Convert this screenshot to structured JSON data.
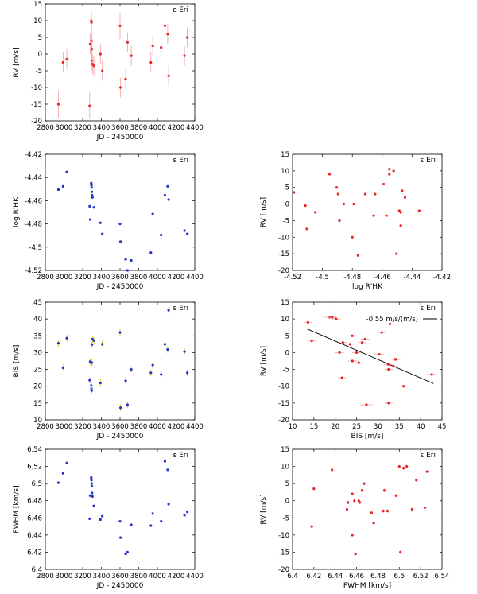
{
  "star_label": "ε Eri",
  "colors": {
    "red": "#e8242a",
    "blue": "#2233cc",
    "errbar": "#f0a0a0",
    "errbar_blue": "#c8d000",
    "fit": "#000000"
  },
  "chart_data": [
    {
      "id": "p1",
      "type": "scatter",
      "color": "red",
      "xerr": false,
      "xlabel": "JD - 2450000",
      "ylabel": "RV [m/s]",
      "xlim": [
        2800,
        4400
      ],
      "ylim": [
        -20,
        15
      ],
      "xticks": [
        "2800",
        "3000",
        "3200",
        "3400",
        "3600",
        "3800",
        "4000",
        "4200",
        "4400"
      ],
      "yticks": [
        "-20",
        "-15",
        "-10",
        "-5",
        "0",
        "5",
        "10",
        "15"
      ],
      "points": [
        [
          2940,
          -15,
          4
        ],
        [
          2990,
          -2.5,
          3
        ],
        [
          3030,
          -1.5,
          3
        ],
        [
          3275,
          -15.5,
          4
        ],
        [
          3280,
          3,
          3
        ],
        [
          3292,
          10,
          3
        ],
        [
          3294,
          9.5,
          3
        ],
        [
          3296,
          4,
          3
        ],
        [
          3298,
          1.5,
          3
        ],
        [
          3300,
          -2,
          3
        ],
        [
          3305,
          -3,
          3
        ],
        [
          3320,
          -3.5,
          3
        ],
        [
          3390,
          0,
          3
        ],
        [
          3410,
          -5,
          3
        ],
        [
          3600,
          8.5,
          4
        ],
        [
          3605,
          -10,
          3
        ],
        [
          3660,
          -7.5,
          3
        ],
        [
          3680,
          3.5,
          3
        ],
        [
          3720,
          -0.5,
          3
        ],
        [
          3930,
          -2.5,
          3
        ],
        [
          3950,
          2.5,
          3
        ],
        [
          4040,
          2,
          3
        ],
        [
          4080,
          8.5,
          3
        ],
        [
          4110,
          6,
          3
        ],
        [
          4120,
          -6.5,
          3
        ],
        [
          4290,
          -0.5,
          3
        ],
        [
          4320,
          5,
          3
        ]
      ]
    },
    {
      "id": "p2",
      "type": "scatter",
      "color": "blue",
      "xerr": false,
      "xlabel": "JD - 2450000",
      "ylabel": "log R'HK",
      "xlim": [
        2800,
        4400
      ],
      "ylim": [
        -4.525,
        -4.42
      ],
      "xticks": [
        "2800",
        "3000",
        "3200",
        "3400",
        "3600",
        "3800",
        "4000",
        "4200",
        "4400"
      ],
      "yticks": [
        "-4.52",
        "-4.5",
        "-4.48",
        "-4.46",
        "-4.44",
        "-4.42"
      ],
      "points": [
        [
          2940,
          -4.452,
          0.001
        ],
        [
          2990,
          -4.449,
          0.001
        ],
        [
          3030,
          -4.436,
          0.001
        ],
        [
          3275,
          -4.467,
          0.001
        ],
        [
          3280,
          -4.479,
          0.001
        ],
        [
          3292,
          -4.446,
          0.001
        ],
        [
          3294,
          -4.448,
          0.001
        ],
        [
          3296,
          -4.45,
          0.001
        ],
        [
          3298,
          -4.454,
          0.001
        ],
        [
          3300,
          -4.457,
          0.001
        ],
        [
          3305,
          -4.459,
          0.001
        ],
        [
          3320,
          -4.468,
          0.001
        ],
        [
          3390,
          -4.482,
          0.001
        ],
        [
          3410,
          -4.492,
          0.001
        ],
        [
          3600,
          -4.483,
          0.001
        ],
        [
          3605,
          -4.499,
          0.001
        ],
        [
          3660,
          -4.515,
          0.001
        ],
        [
          3680,
          -4.525,
          0.001
        ],
        [
          3720,
          -4.516,
          0.001
        ],
        [
          3930,
          -4.509,
          0.001
        ],
        [
          3950,
          -4.474,
          0.001
        ],
        [
          4040,
          -4.493,
          0.001
        ],
        [
          4080,
          -4.457,
          0.001
        ],
        [
          4110,
          -4.449,
          0.001
        ],
        [
          4120,
          -4.461,
          0.001
        ],
        [
          4290,
          -4.489,
          0.001
        ],
        [
          4320,
          -4.492,
          0.001
        ]
      ]
    },
    {
      "id": "p3",
      "type": "scatter",
      "color": "red",
      "xerr": false,
      "xlabel": "log R'HK",
      "ylabel": "RV [m/s]",
      "xlim": [
        -4.525,
        -4.42
      ],
      "ylim": [
        -20,
        15
      ],
      "xticks": [
        "-4.52",
        "-4.5",
        "-4.48",
        "-4.46",
        "-4.44",
        "-4.42"
      ],
      "yticks": [
        "-20",
        "-15",
        "-10",
        "-5",
        "0",
        "5",
        "10",
        "15"
      ],
      "points": [
        [
          -4.524,
          3.5,
          0.2
        ],
        [
          -4.516,
          -0.5,
          0.2
        ],
        [
          -4.515,
          -7.5,
          0.2
        ],
        [
          -4.509,
          -2.5,
          0.2
        ],
        [
          -4.499,
          9,
          0.2
        ],
        [
          -4.494,
          5,
          0.2
        ],
        [
          -4.493,
          3,
          0.2
        ],
        [
          -4.492,
          -5,
          0.2
        ],
        [
          -4.489,
          0,
          0.2
        ],
        [
          -4.483,
          -10,
          0.2
        ],
        [
          -4.482,
          0,
          0.2
        ],
        [
          -4.479,
          -15.5,
          0.2
        ],
        [
          -4.474,
          3,
          0.2
        ],
        [
          -4.468,
          -3.5,
          0.2
        ],
        [
          -4.467,
          3,
          0.2
        ],
        [
          -4.461,
          6,
          0.2
        ],
        [
          -4.459,
          -3.5,
          0.2
        ],
        [
          -4.457,
          10.5,
          0.2
        ],
        [
          -4.457,
          9,
          0.2
        ],
        [
          -4.454,
          10,
          0.2
        ],
        [
          -4.452,
          -15,
          0.2
        ],
        [
          -4.45,
          -2,
          0.2
        ],
        [
          -4.449,
          -2.5,
          0.2
        ],
        [
          -4.448,
          4,
          0.2
        ],
        [
          -4.446,
          2,
          0.2
        ],
        [
          -4.449,
          -6.5,
          0.2
        ],
        [
          -4.436,
          -2,
          0.2
        ]
      ]
    },
    {
      "id": "p4",
      "type": "scatter",
      "color": "blue",
      "xerr": false,
      "xlabel": "JD - 2450000",
      "ylabel": "BIS [m/s]",
      "xlim": [
        2800,
        4400
      ],
      "ylim": [
        10,
        45
      ],
      "xticks": [
        "2800",
        "3000",
        "3200",
        "3400",
        "3600",
        "3800",
        "4000",
        "4200",
        "4400"
      ],
      "yticks": [
        "10",
        "15",
        "20",
        "25",
        "30",
        "35",
        "40",
        "45"
      ],
      "points": [
        [
          2940,
          32.8,
          1
        ],
        [
          2990,
          25.5,
          1
        ],
        [
          3030,
          34.3,
          1
        ],
        [
          3275,
          21.8,
          1
        ],
        [
          3280,
          27.3,
          1
        ],
        [
          3292,
          20.2,
          1
        ],
        [
          3294,
          19.3,
          1
        ],
        [
          3296,
          18.7,
          1
        ],
        [
          3298,
          27.0,
          1
        ],
        [
          3300,
          32.4,
          1
        ],
        [
          3305,
          34.0,
          1
        ],
        [
          3320,
          33.6,
          1
        ],
        [
          3390,
          21.0,
          1
        ],
        [
          3410,
          32.5,
          1
        ],
        [
          3600,
          36.0,
          1
        ],
        [
          3605,
          13.6,
          1
        ],
        [
          3660,
          21.6,
          1
        ],
        [
          3680,
          14.5,
          1
        ],
        [
          3720,
          25.0,
          1
        ],
        [
          3930,
          24.0,
          1
        ],
        [
          3950,
          26.3,
          1
        ],
        [
          4040,
          23.5,
          1
        ],
        [
          4080,
          32.5,
          1
        ],
        [
          4110,
          30.9,
          1
        ],
        [
          4120,
          42.6,
          1
        ],
        [
          4290,
          30.3,
          1
        ],
        [
          4320,
          24.0,
          1
        ]
      ]
    },
    {
      "id": "p5",
      "type": "scatter",
      "color": "red",
      "xerr": true,
      "xlabel": "BIS [m/s]",
      "ylabel": "RV [m/s]",
      "xlim": [
        10,
        45
      ],
      "ylim": [
        -20,
        15
      ],
      "xticks": [
        "10",
        "15",
        "20",
        "25",
        "30",
        "35",
        "40",
        "45"
      ],
      "yticks": [
        "-20",
        "-15",
        "-10",
        "-5",
        "0",
        "5",
        "10",
        "15"
      ],
      "legend_text": "-0.55 m/s/(m/s)",
      "fit_line": {
        "x": [
          13.5,
          43
        ],
        "y": [
          7,
          -9.2
        ]
      },
      "points": [
        [
          13.6,
          9,
          1
        ],
        [
          14.5,
          3.5,
          1
        ],
        [
          18.7,
          10.5,
          1.5
        ],
        [
          19.3,
          10.5,
          1
        ],
        [
          20.2,
          10,
          1
        ],
        [
          21.0,
          0,
          1
        ],
        [
          21.6,
          -7.5,
          1
        ],
        [
          21.8,
          3,
          1
        ],
        [
          23.5,
          2.5,
          1
        ],
        [
          24.0,
          5,
          1
        ],
        [
          24.0,
          -2.5,
          1
        ],
        [
          25.0,
          0,
          1
        ],
        [
          25.5,
          -3,
          1
        ],
        [
          26.3,
          3,
          1
        ],
        [
          27.0,
          4,
          1
        ],
        [
          27.3,
          -15.5,
          1.5
        ],
        [
          30.3,
          -0.5,
          1
        ],
        [
          30.9,
          6,
          1
        ],
        [
          32.4,
          -3.5,
          1
        ],
        [
          32.5,
          -5,
          1
        ],
        [
          32.5,
          -15,
          1
        ],
        [
          32.8,
          8.5,
          1
        ],
        [
          33.6,
          -4,
          1
        ],
        [
          34.0,
          -2,
          1
        ],
        [
          34.3,
          -2,
          1
        ],
        [
          36.0,
          -10,
          1
        ],
        [
          42.6,
          -6.5,
          1
        ]
      ]
    },
    {
      "id": "p6",
      "type": "scatter",
      "color": "blue",
      "xerr": false,
      "xlabel": "JD - 2450000",
      "ylabel": "FWHM [km/s]",
      "xlim": [
        2800,
        4400
      ],
      "ylim": [
        6.4,
        6.54
      ],
      "xticks": [
        "2800",
        "3000",
        "3200",
        "3400",
        "3600",
        "3800",
        "4000",
        "4200",
        "4400"
      ],
      "yticks": [
        "6.4",
        "6.42",
        "6.44",
        "6.46",
        "6.48",
        "6.5",
        "6.52",
        "6.54"
      ],
      "points": [
        [
          2940,
          6.501,
          0.001
        ],
        [
          2990,
          6.512,
          0.001
        ],
        [
          3030,
          6.524,
          0.001
        ],
        [
          3275,
          6.459,
          0.001
        ],
        [
          3280,
          6.486,
          0.001
        ],
        [
          3292,
          6.507,
          0.001
        ],
        [
          3294,
          6.504,
          0.001
        ],
        [
          3296,
          6.5,
          0.001
        ],
        [
          3298,
          6.497,
          0.001
        ],
        [
          3300,
          6.489,
          0.001
        ],
        [
          3305,
          6.485,
          0.001
        ],
        [
          3320,
          6.474,
          0.001
        ],
        [
          3390,
          6.458,
          0.001
        ],
        [
          3410,
          6.462,
          0.001
        ],
        [
          3600,
          6.456,
          0.001
        ],
        [
          3605,
          6.437,
          0.001
        ],
        [
          3660,
          6.418,
          0.001
        ],
        [
          3680,
          6.42,
          0.001
        ],
        [
          3720,
          6.452,
          0.001
        ],
        [
          3930,
          6.451,
          0.001
        ],
        [
          3950,
          6.465,
          0.001
        ],
        [
          4040,
          6.456,
          0.001
        ],
        [
          4080,
          6.526,
          0.001
        ],
        [
          4110,
          6.516,
          0.001
        ],
        [
          4120,
          6.476,
          0.001
        ],
        [
          4290,
          6.463,
          0.001
        ],
        [
          4320,
          6.467,
          0.001
        ]
      ]
    },
    {
      "id": "p7",
      "type": "scatter",
      "color": "red",
      "xerr": false,
      "xlabel": "FWHM [km/s]",
      "ylabel": "RV [m/s]",
      "xlim": [
        6.4,
        6.54
      ],
      "ylim": [
        -20,
        15
      ],
      "xticks": [
        "6.4",
        "6.42",
        "6.44",
        "6.46",
        "6.48",
        "6.5",
        "6.52",
        "6.54"
      ],
      "yticks": [
        "-20",
        "-15",
        "-10",
        "-5",
        "0",
        "5",
        "10",
        "15"
      ],
      "points": [
        [
          6.418,
          -7.5,
          0.5
        ],
        [
          6.42,
          3.5,
          0.5
        ],
        [
          6.437,
          9,
          0.5
        ],
        [
          6.451,
          -2.5,
          0.5
        ],
        [
          6.452,
          -0.5,
          0.5
        ],
        [
          6.456,
          -10,
          0.5
        ],
        [
          6.456,
          2,
          0.5
        ],
        [
          6.458,
          0,
          0.5
        ],
        [
          6.459,
          -15.5,
          0.5
        ],
        [
          6.462,
          0,
          0.5
        ],
        [
          6.463,
          -0.5,
          0.5
        ],
        [
          6.465,
          3,
          0.5
        ],
        [
          6.467,
          5,
          0.5
        ],
        [
          6.474,
          -3.5,
          0.5
        ],
        [
          6.476,
          -6.5,
          0.5
        ],
        [
          6.485,
          -3,
          0.5
        ],
        [
          6.486,
          3,
          0.5
        ],
        [
          6.489,
          -3,
          0.5
        ],
        [
          6.497,
          1.5,
          0.5
        ],
        [
          6.5,
          10,
          0.5
        ],
        [
          6.501,
          -15,
          0.5
        ],
        [
          6.504,
          9.5,
          0.5
        ],
        [
          6.507,
          10,
          0.5
        ],
        [
          6.512,
          -2.5,
          0.5
        ],
        [
          6.516,
          6,
          0.5
        ],
        [
          6.524,
          -2,
          0.5
        ],
        [
          6.526,
          8.5,
          0.5
        ]
      ]
    }
  ]
}
